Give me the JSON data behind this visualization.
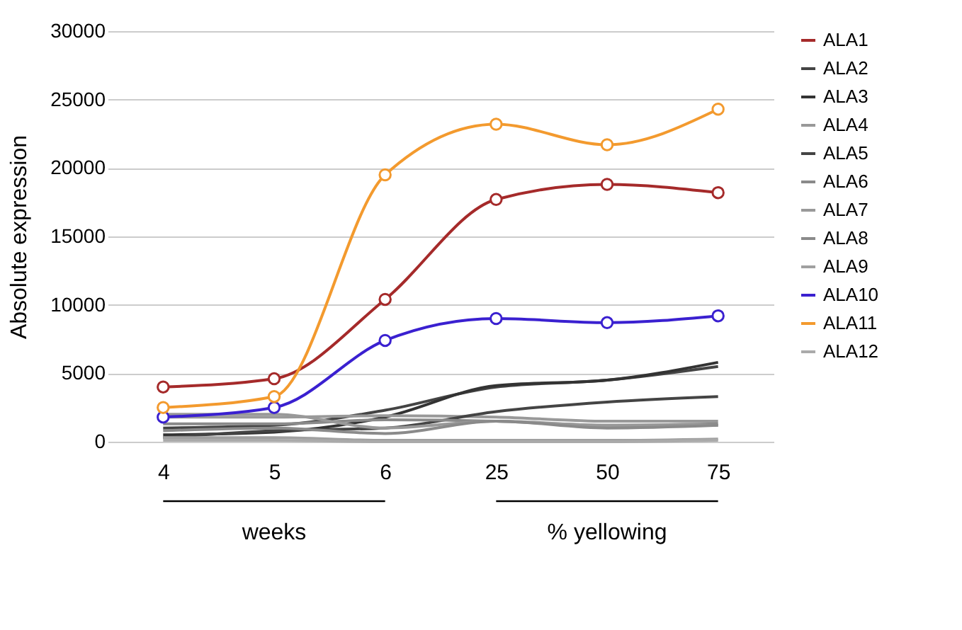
{
  "chart_data": {
    "type": "line",
    "ylabel": "Absolute expression",
    "categories": [
      "4",
      "5",
      "6",
      "25",
      "50",
      "75"
    ],
    "ylim": [
      0,
      30000
    ],
    "yticks": [
      0,
      5000,
      10000,
      15000,
      20000,
      25000,
      30000
    ],
    "grid": "y",
    "legend": "right",
    "annotations": [
      "weeks",
      "% yellowing"
    ],
    "series": [
      {
        "name": "ALA1",
        "color": "#a52a2a",
        "marker": "circle",
        "values": [
          4000,
          4600,
          10400,
          17700,
          18800,
          18200
        ]
      },
      {
        "name": "ALA2",
        "color": "#444444",
        "marker": "none",
        "values": [
          1000,
          1200,
          2300,
          4000,
          4500,
          5500
        ]
      },
      {
        "name": "ALA3",
        "color": "#333333",
        "marker": "none",
        "values": [
          500,
          700,
          1800,
          4100,
          4500,
          5800
        ]
      },
      {
        "name": "ALA4",
        "color": "#999999",
        "marker": "none",
        "values": [
          1800,
          1800,
          1900,
          1800,
          1500,
          1500
        ]
      },
      {
        "name": "ALA5",
        "color": "#444444",
        "marker": "none",
        "values": [
          300,
          800,
          1000,
          2200,
          2900,
          3300
        ]
      },
      {
        "name": "ALA6",
        "color": "#8a8a8a",
        "marker": "none",
        "values": [
          1300,
          1300,
          1600,
          1500,
          1200,
          1300
        ]
      },
      {
        "name": "ALA7",
        "color": "#999999",
        "marker": "none",
        "values": [
          2000,
          2000,
          1000,
          1500,
          1200,
          1200
        ]
      },
      {
        "name": "ALA8",
        "color": "#8a8a8a",
        "marker": "none",
        "values": [
          800,
          1000,
          600,
          1500,
          1000,
          1200
        ]
      },
      {
        "name": "ALA9",
        "color": "#a0a0a0",
        "marker": "none",
        "values": [
          300,
          300,
          100,
          100,
          100,
          200
        ]
      },
      {
        "name": "ALA10",
        "color": "#3a20d0",
        "marker": "circle",
        "values": [
          1800,
          2500,
          7400,
          9000,
          8700,
          9200
        ]
      },
      {
        "name": "ALA11",
        "color": "#f39a2e",
        "marker": "circle",
        "values": [
          2500,
          3300,
          19500,
          23200,
          21700,
          24300
        ]
      },
      {
        "name": "ALA12",
        "color": "#aaaaaa",
        "marker": "none",
        "values": [
          100,
          100,
          0,
          0,
          0,
          100
        ]
      }
    ]
  }
}
